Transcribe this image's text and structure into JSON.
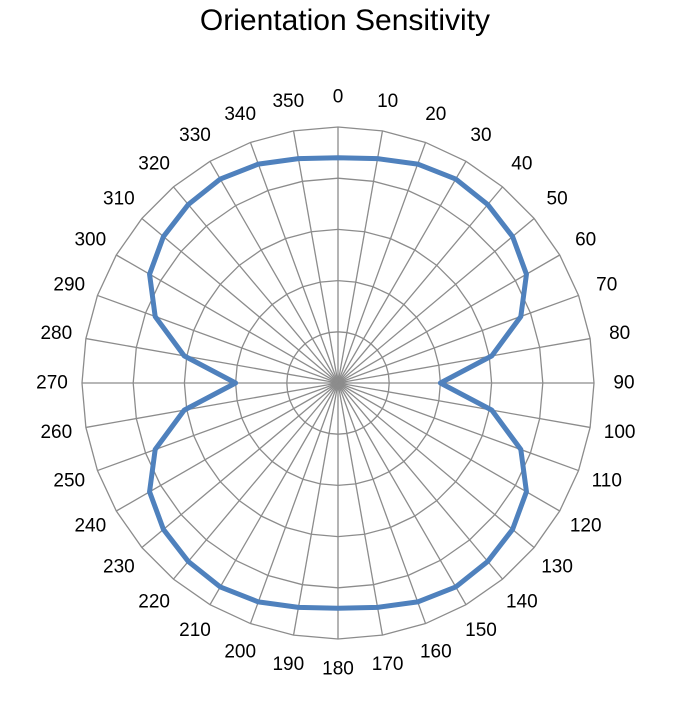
{
  "chart_data": {
    "type": "radar",
    "title": "Orientation Sensitivity",
    "categories": [
      "0",
      "10",
      "20",
      "30",
      "40",
      "50",
      "60",
      "70",
      "80",
      "90",
      "100",
      "110",
      "120",
      "130",
      "140",
      "150",
      "160",
      "170",
      "180",
      "190",
      "200",
      "210",
      "220",
      "230",
      "240",
      "250",
      "260",
      "270",
      "280",
      "290",
      "300",
      "310",
      "320",
      "330",
      "340",
      "350"
    ],
    "series": [
      {
        "values": [
          0.88,
          0.89,
          0.91,
          0.92,
          0.91,
          0.89,
          0.85,
          0.76,
          0.61,
          0.4,
          0.61,
          0.76,
          0.85,
          0.89,
          0.91,
          0.92,
          0.91,
          0.89,
          0.88,
          0.89,
          0.91,
          0.92,
          0.91,
          0.89,
          0.85,
          0.76,
          0.61,
          0.4,
          0.61,
          0.76,
          0.85,
          0.89,
          0.91,
          0.92,
          0.91,
          0.89
        ],
        "color": "#4f81bd"
      }
    ],
    "rlim": [
      0,
      1
    ],
    "grid": true
  }
}
